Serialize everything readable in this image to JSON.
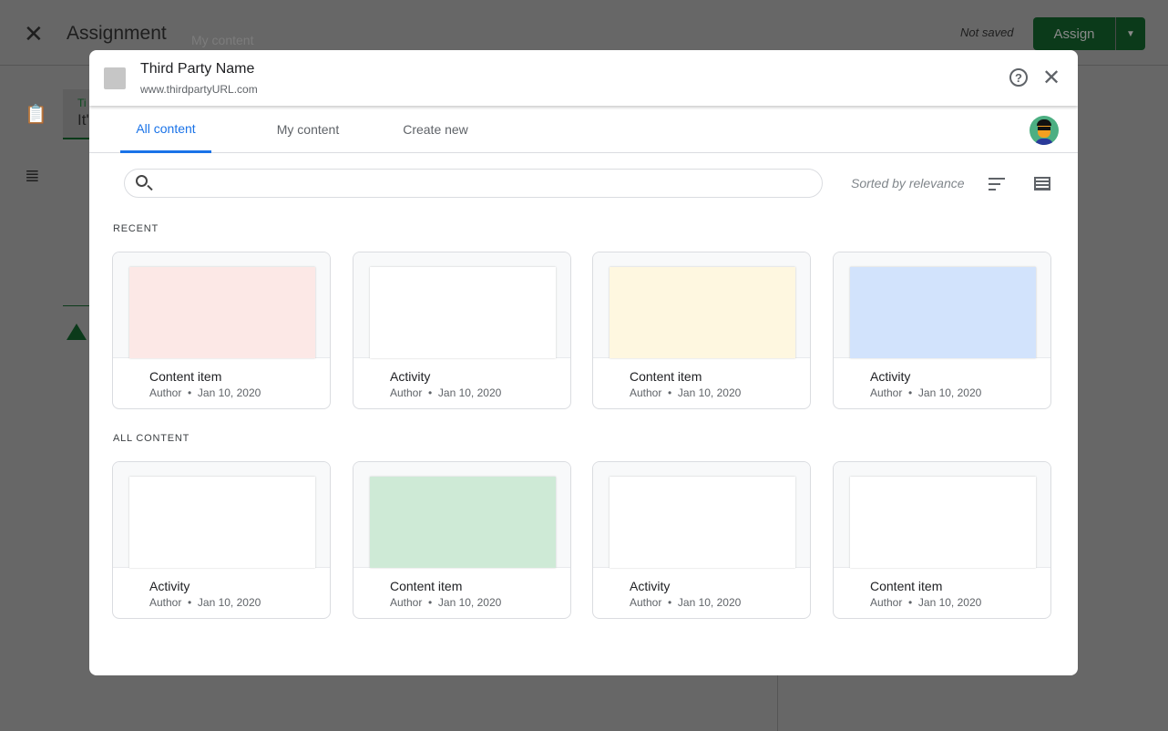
{
  "background": {
    "title": "Assignment",
    "ghost_text": "My content",
    "status": "Not saved",
    "assign_label": "Assign",
    "field_label": "Ti",
    "field_value": "It'"
  },
  "modal": {
    "name": "Third Party Name",
    "url": "www.thirdpartyURL.com",
    "tabs": [
      {
        "label": "All content",
        "active": true
      },
      {
        "label": "My content",
        "active": false
      },
      {
        "label": "Create new",
        "active": false
      }
    ],
    "search": {
      "placeholder": "",
      "value": ""
    },
    "sort_label": "Sorted by relevance",
    "sections": [
      {
        "label": "RECENT",
        "items": [
          {
            "title": "Content item",
            "author": "Author",
            "date": "Jan 10, 2020",
            "color": "#fce8e6"
          },
          {
            "title": "Activity",
            "author": "Author",
            "date": "Jan 10, 2020",
            "color": "#ffffff"
          },
          {
            "title": "Content item",
            "author": "Author",
            "date": "Jan 10, 2020",
            "color": "#fef7e0"
          },
          {
            "title": "Activity",
            "author": "Author",
            "date": "Jan 10, 2020",
            "color": "#d2e3fc"
          }
        ]
      },
      {
        "label": "ALL CONTENT",
        "items": [
          {
            "title": "Activity",
            "author": "Author",
            "date": "Jan 10, 2020",
            "color": "#ffffff"
          },
          {
            "title": "Content item",
            "author": "Author",
            "date": "Jan 10, 2020",
            "color": "#ceead6"
          },
          {
            "title": "Activity",
            "author": "Author",
            "date": "Jan 10, 2020",
            "color": "#ffffff"
          },
          {
            "title": "Content item",
            "author": "Author",
            "date": "Jan 10, 2020",
            "color": "#ffffff"
          }
        ]
      }
    ]
  }
}
